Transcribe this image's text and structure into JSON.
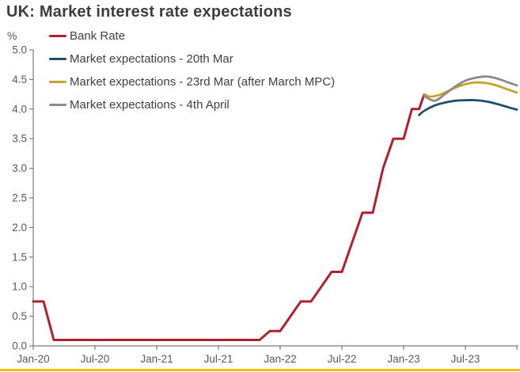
{
  "chart_data": {
    "type": "line",
    "title": "UK: Market interest rate expectations",
    "y_unit": "%",
    "xlabel": "",
    "ylabel": "%",
    "x_axis_note": "x values are months since Jan-2020",
    "xlim": [
      0,
      47
    ],
    "ylim": [
      0,
      5
    ],
    "grid": false,
    "legend_position": "top-left",
    "y_ticks": [
      0.0,
      0.5,
      1.0,
      1.5,
      2.0,
      2.5,
      3.0,
      3.5,
      4.0,
      4.5,
      5.0
    ],
    "x_ticks": [
      {
        "m": 0,
        "label": "Jan-20"
      },
      {
        "m": 6,
        "label": "Jul-20"
      },
      {
        "m": 12,
        "label": "Jan-21"
      },
      {
        "m": 18,
        "label": "Jul-21"
      },
      {
        "m": 24,
        "label": "Jan-22"
      },
      {
        "m": 30,
        "label": "Jul-22"
      },
      {
        "m": 36,
        "label": "Jan-23"
      },
      {
        "m": 42,
        "label": "Jul-23"
      },
      {
        "m": 47,
        "label": ""
      }
    ],
    "series": [
      {
        "name": "Bank Rate",
        "color": "#b01f2e",
        "width": 3,
        "smooth": false,
        "points": [
          [
            0,
            0.75
          ],
          [
            1,
            0.75
          ],
          [
            2,
            0.1
          ],
          [
            22,
            0.1
          ],
          [
            23,
            0.25
          ],
          [
            24,
            0.25
          ],
          [
            25,
            0.5
          ],
          [
            26,
            0.75
          ],
          [
            27,
            0.75
          ],
          [
            28,
            1.0
          ],
          [
            29,
            1.25
          ],
          [
            30,
            1.25
          ],
          [
            31,
            1.75
          ],
          [
            32,
            2.25
          ],
          [
            33,
            2.25
          ],
          [
            34,
            3.0
          ],
          [
            35,
            3.5
          ],
          [
            36,
            3.5
          ],
          [
            36.8,
            4.0
          ],
          [
            37.5,
            4.0
          ],
          [
            38,
            4.25
          ]
        ]
      },
      {
        "name": "Market expectations - 20th Mar",
        "color": "#1f4e6b",
        "width": 2.8,
        "smooth": true,
        "points": [
          [
            37.5,
            3.9
          ],
          [
            38,
            3.97
          ],
          [
            39,
            4.06
          ],
          [
            40,
            4.11
          ],
          [
            41,
            4.14
          ],
          [
            42,
            4.15
          ],
          [
            43,
            4.15
          ],
          [
            44,
            4.13
          ],
          [
            45,
            4.09
          ],
          [
            46,
            4.04
          ],
          [
            47,
            3.99
          ]
        ]
      },
      {
        "name": "Market expectations - 23rd Mar (after March MPC)",
        "color": "#c9a22b",
        "width": 2.8,
        "smooth": true,
        "points": [
          [
            38,
            4.25
          ],
          [
            38.6,
            4.21
          ],
          [
            39.5,
            4.24
          ],
          [
            40,
            4.28
          ],
          [
            41,
            4.36
          ],
          [
            42,
            4.42
          ],
          [
            43,
            4.45
          ],
          [
            44,
            4.44
          ],
          [
            45,
            4.4
          ],
          [
            46,
            4.34
          ],
          [
            47,
            4.28
          ]
        ]
      },
      {
        "name": "Market expectations - 4th April",
        "color": "#8c8c8c",
        "width": 2.8,
        "smooth": true,
        "points": [
          [
            38,
            4.22
          ],
          [
            39,
            4.14
          ],
          [
            40,
            4.25
          ],
          [
            41,
            4.38
          ],
          [
            42,
            4.48
          ],
          [
            43,
            4.53
          ],
          [
            44,
            4.55
          ],
          [
            45,
            4.52
          ],
          [
            46,
            4.46
          ],
          [
            47,
            4.4
          ]
        ]
      }
    ],
    "axis_color": "#7a7a7a",
    "tick_label_color": "#595959"
  },
  "accent": {
    "bottom_rule_color": "#f2c400"
  }
}
